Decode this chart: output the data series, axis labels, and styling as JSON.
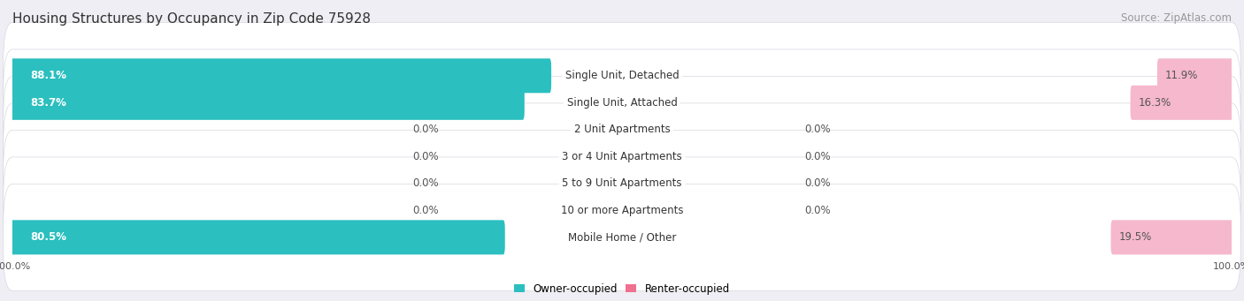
{
  "title": "Housing Structures by Occupancy in Zip Code 75928",
  "source": "Source: ZipAtlas.com",
  "categories": [
    "Single Unit, Detached",
    "Single Unit, Attached",
    "2 Unit Apartments",
    "3 or 4 Unit Apartments",
    "5 to 9 Unit Apartments",
    "10 or more Apartments",
    "Mobile Home / Other"
  ],
  "owner_pct": [
    88.1,
    83.7,
    0.0,
    0.0,
    0.0,
    0.0,
    80.5
  ],
  "renter_pct": [
    11.9,
    16.3,
    0.0,
    0.0,
    0.0,
    0.0,
    19.5
  ],
  "owner_color": "#2bbfbf",
  "renter_color": "#f07090",
  "owner_color_light": "#88d4d8",
  "renter_color_light": "#f5b8cc",
  "background_color": "#eeeef4",
  "row_bg_color": "#ffffff",
  "row_edge_color": "#d8d8e0",
  "title_fontsize": 11,
  "source_fontsize": 8.5,
  "label_fontsize": 8.5,
  "category_fontsize": 8.5,
  "axis_label_fontsize": 8,
  "legend_fontsize": 8.5,
  "title_color": "#333333",
  "label_white": "#ffffff",
  "label_dark": "#555555"
}
